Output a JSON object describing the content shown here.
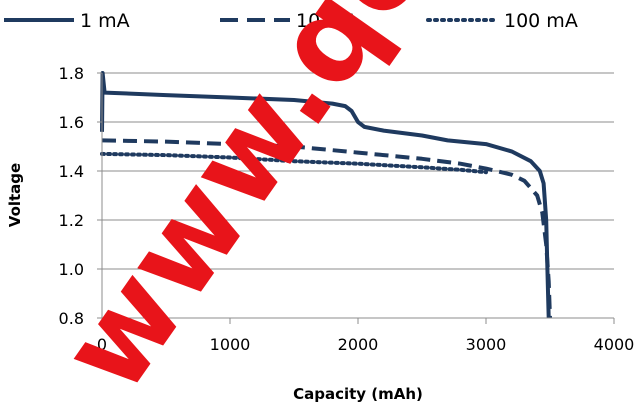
{
  "chart_data": {
    "type": "line",
    "title": "",
    "xlabel": "Capacity (mAh)",
    "ylabel": "Voltage",
    "xlim": [
      0,
      4000
    ],
    "ylim": [
      0.8,
      1.8
    ],
    "xticks": [
      "0",
      "1000",
      "2000",
      "3000",
      "4000"
    ],
    "yticks": [
      "0.8",
      "1.0",
      "1.2",
      "1.4",
      "1.6",
      "1.8"
    ],
    "grid": "horizontal",
    "legend_position": "top",
    "series": [
      {
        "name": "1 mA",
        "style": "solid",
        "color": "#1f3a5f",
        "points": [
          [
            0,
            1.56
          ],
          [
            5,
            1.8
          ],
          [
            20,
            1.72
          ],
          [
            500,
            1.71
          ],
          [
            1000,
            1.7
          ],
          [
            1500,
            1.69
          ],
          [
            1800,
            1.675
          ],
          [
            1900,
            1.665
          ],
          [
            1950,
            1.645
          ],
          [
            2000,
            1.6
          ],
          [
            2050,
            1.58
          ],
          [
            2200,
            1.565
          ],
          [
            2500,
            1.545
          ],
          [
            2700,
            1.525
          ],
          [
            3000,
            1.51
          ],
          [
            3200,
            1.48
          ],
          [
            3350,
            1.44
          ],
          [
            3420,
            1.4
          ],
          [
            3450,
            1.35
          ],
          [
            3470,
            1.2
          ],
          [
            3480,
            1.0
          ],
          [
            3490,
            0.8
          ]
        ]
      },
      {
        "name": "10 mA",
        "style": "dashed",
        "color": "#1f3a5f",
        "points": [
          [
            0,
            1.525
          ],
          [
            500,
            1.52
          ],
          [
            1000,
            1.51
          ],
          [
            1500,
            1.5
          ],
          [
            2000,
            1.475
          ],
          [
            2500,
            1.45
          ],
          [
            2800,
            1.43
          ],
          [
            3000,
            1.41
          ],
          [
            3200,
            1.385
          ],
          [
            3300,
            1.36
          ],
          [
            3400,
            1.3
          ],
          [
            3440,
            1.23
          ],
          [
            3470,
            1.1
          ],
          [
            3490,
            0.95
          ],
          [
            3500,
            0.8
          ]
        ]
      },
      {
        "name": "100 mA",
        "style": "dotted",
        "color": "#1f3a5f",
        "points": [
          [
            0,
            1.47
          ],
          [
            500,
            1.465
          ],
          [
            1000,
            1.455
          ],
          [
            1500,
            1.44
          ],
          [
            2000,
            1.43
          ],
          [
            2500,
            1.415
          ],
          [
            2800,
            1.405
          ],
          [
            3000,
            1.395
          ]
        ]
      }
    ]
  },
  "colors": {
    "series": "#1f3a5f",
    "grid": "#8c8c8c",
    "watermark": "#e8141a"
  },
  "watermark": {
    "text": "www.qe"
  }
}
